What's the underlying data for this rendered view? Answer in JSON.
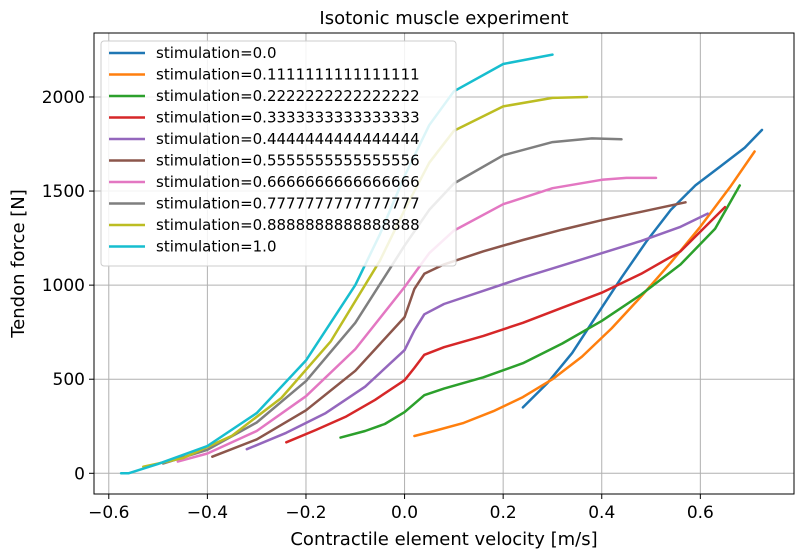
{
  "chart_data": {
    "type": "line",
    "title": "Isotonic muscle experiment",
    "xlabel": "Contractile element velocity [m/s]",
    "ylabel": "Tendon force [N]",
    "xlim": [
      -0.63,
      0.79
    ],
    "ylim": [
      -110,
      2340
    ],
    "xticks": [
      -0.6,
      -0.4,
      -0.2,
      0.0,
      0.2,
      0.4,
      0.6
    ],
    "xtick_labels": [
      "−0.6",
      "−0.4",
      "−0.2",
      "0.0",
      "0.2",
      "0.4",
      "0.6"
    ],
    "yticks": [
      0,
      500,
      1000,
      1500,
      2000
    ],
    "ytick_labels": [
      "0",
      "500",
      "1000",
      "1500",
      "2000"
    ],
    "grid": true,
    "legend_position": "top-left",
    "series": [
      {
        "name": "stimulation=0.0",
        "color": "#1f77b4",
        "x": [
          0.24,
          0.29,
          0.34,
          0.39,
          0.44,
          0.49,
          0.54,
          0.59,
          0.64,
          0.69,
          0.725
        ],
        "y": [
          350,
          480,
          640,
          840,
          1040,
          1230,
          1400,
          1530,
          1630,
          1730,
          1825
        ]
      },
      {
        "name": "stimulation=0.1111111111111111",
        "color": "#ff7f0e",
        "x": [
          0.02,
          0.06,
          0.12,
          0.18,
          0.24,
          0.3,
          0.36,
          0.42,
          0.48,
          0.54,
          0.6,
          0.66,
          0.71
        ],
        "y": [
          198,
          225,
          268,
          330,
          405,
          500,
          620,
          770,
          940,
          1120,
          1310,
          1520,
          1710
        ]
      },
      {
        "name": "stimulation=0.2222222222222222",
        "color": "#2ca02c",
        "x": [
          -0.13,
          -0.08,
          -0.04,
          0.0,
          0.02,
          0.04,
          0.08,
          0.16,
          0.24,
          0.32,
          0.4,
          0.48,
          0.56,
          0.63,
          0.68
        ],
        "y": [
          190,
          225,
          262,
          325,
          370,
          415,
          450,
          510,
          585,
          690,
          810,
          950,
          1110,
          1300,
          1530
        ]
      },
      {
        "name": "stimulation=0.3333333333333333",
        "color": "#d62728",
        "x": [
          -0.24,
          -0.18,
          -0.12,
          -0.06,
          0.0,
          0.02,
          0.04,
          0.08,
          0.16,
          0.24,
          0.32,
          0.4,
          0.48,
          0.56,
          0.65
        ],
        "y": [
          165,
          230,
          300,
          390,
          495,
          560,
          630,
          670,
          730,
          800,
          880,
          960,
          1060,
          1180,
          1415
        ]
      },
      {
        "name": "stimulation=0.4444444444444444",
        "color": "#9467bd",
        "x": [
          -0.32,
          -0.24,
          -0.16,
          -0.08,
          0.0,
          0.02,
          0.04,
          0.08,
          0.16,
          0.24,
          0.32,
          0.4,
          0.48,
          0.56,
          0.615
        ],
        "y": [
          128,
          215,
          320,
          460,
          655,
          760,
          845,
          900,
          970,
          1040,
          1105,
          1170,
          1235,
          1310,
          1380
        ]
      },
      {
        "name": "stimulation=0.5555555555555556",
        "color": "#8c564b",
        "x": [
          -0.39,
          -0.3,
          -0.2,
          -0.1,
          0.0,
          0.02,
          0.04,
          0.08,
          0.16,
          0.24,
          0.32,
          0.4,
          0.48,
          0.57
        ],
        "y": [
          88,
          180,
          335,
          545,
          830,
          980,
          1060,
          1110,
          1180,
          1240,
          1295,
          1345,
          1390,
          1440
        ]
      },
      {
        "name": "stimulation=0.6666666666666666",
        "color": "#e377c2",
        "x": [
          -0.46,
          -0.4,
          -0.3,
          -0.2,
          -0.1,
          0.0,
          0.05,
          0.1,
          0.2,
          0.3,
          0.4,
          0.45,
          0.51
        ],
        "y": [
          62,
          105,
          225,
          410,
          660,
          990,
          1170,
          1290,
          1430,
          1515,
          1560,
          1570,
          1570
        ]
      },
      {
        "name": "stimulation=0.7777777777777777",
        "color": "#7f7f7f",
        "x": [
          -0.49,
          -0.4,
          -0.3,
          -0.2,
          -0.1,
          0.0,
          0.05,
          0.1,
          0.2,
          0.3,
          0.38,
          0.44
        ],
        "y": [
          52,
          125,
          270,
          490,
          800,
          1210,
          1400,
          1540,
          1690,
          1760,
          1780,
          1775
        ]
      },
      {
        "name": "stimulation=0.8888888888888888",
        "color": "#bcbd22",
        "x": [
          -0.53,
          -0.45,
          -0.35,
          -0.25,
          -0.15,
          -0.05,
          0.0,
          0.05,
          0.1,
          0.2,
          0.3,
          0.37
        ],
        "y": [
          35,
          80,
          200,
          400,
          700,
          1130,
          1400,
          1650,
          1820,
          1950,
          1995,
          2000
        ]
      },
      {
        "name": "stimulation=1.0",
        "color": "#17becf",
        "x": [
          -0.575,
          -0.56,
          -0.5,
          -0.4,
          -0.3,
          -0.2,
          -0.1,
          -0.05,
          0.0,
          0.05,
          0.1,
          0.2,
          0.3
        ],
        "y": [
          0,
          0,
          50,
          145,
          320,
          600,
          1000,
          1270,
          1580,
          1850,
          2030,
          2175,
          2225
        ]
      }
    ]
  }
}
